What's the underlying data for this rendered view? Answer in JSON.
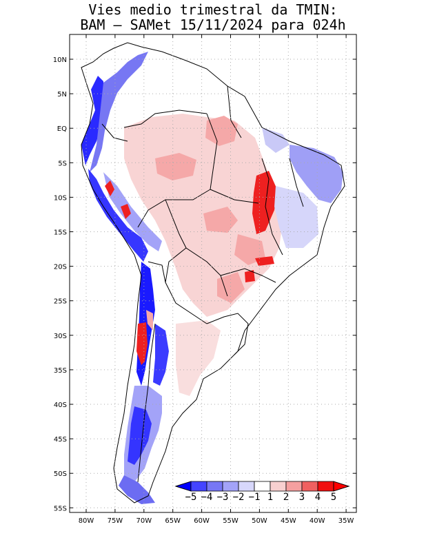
{
  "title": {
    "line1": "Vies medio trimestral da TMIN:",
    "line2": "BAM – SAMet 15/11/2024  para 024h"
  },
  "lat_labels": [
    "10N",
    "5N",
    "EQ",
    "5S",
    "10S",
    "15S",
    "20S",
    "25S",
    "30S",
    "35S",
    "40S",
    "45S",
    "50S",
    "55S"
  ],
  "lon_labels": [
    "80W",
    "75W",
    "70W",
    "65W",
    "60W",
    "55W",
    "50W",
    "45W",
    "40W",
    "35W"
  ],
  "colorbar": {
    "labels": [
      "−5",
      "−4",
      "−3",
      "−2",
      "−1",
      "1",
      "2",
      "3",
      "4",
      "5"
    ],
    "colors": [
      "#0000ff",
      "#4444ff",
      "#7777f5",
      "#a3a3f8",
      "#d7d7fb",
      "#ffffff",
      "#f8d0d0",
      "#f5a0a0",
      "#f06060",
      "#f01010",
      "#ff0000"
    ]
  },
  "colors": {
    "neg_strong": "#1a1aff",
    "neg_mid": "#6f6ff2",
    "neg_light": "#c9c9f7",
    "pos_light": "#f7d2d2",
    "pos_mid": "#f49b9b",
    "pos_strong": "#ee2020",
    "coast": "#000000",
    "grid": "#aaaaaa"
  }
}
